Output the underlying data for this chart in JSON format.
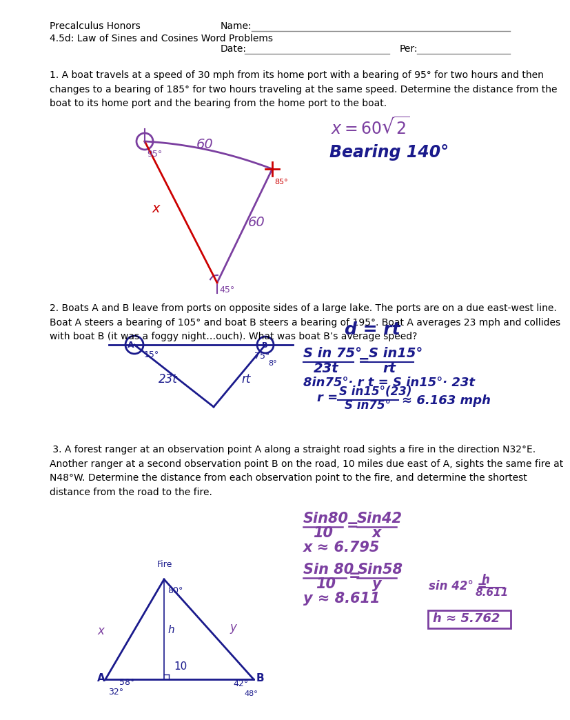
{
  "page_width": 7.91,
  "page_height": 10.24,
  "bg_color": "#ffffff",
  "header": {
    "line1_left": "Precalculus Honors",
    "line1_right": "Name:",
    "line2_left": "4.5d: Law of Sines and Cosines Word Problems",
    "line3_center": "Date:",
    "line3_per": "Per:",
    "font_size": 11
  },
  "problem1_text": "1. A boat travels at a speed of 30 mph from its home port with a bearing of 95° for two hours and then\nchanges to a bearing of 185° for two hours traveling at the same speed. Determine the distance from the\nboat to its home port and the bearing from the home port to the boat.",
  "problem2_text": "2. Boats A and B leave from ports on opposite sides of a large lake. The ports are on a due east-west line.\nBoat A steers a bearing of 105° and boat B steers a bearing of 195°. Boat A averages 23 mph and collides\nwith boat B (it was a foggy night…ouch). What was boat B’s average speed?",
  "problem3_text": " 3. A forest ranger at an observation point A along a straight road sights a fire in the direction N32°E.\nAnother ranger at a second observation point B on the road, 10 miles due east of A, sights the same fire at\nN48°W. Determine the distance from each observation point to the fire, and determine the shortest\ndistance from the road to the fire.",
  "purple": "#7B3FA0",
  "navy": "#1a1a8c",
  "red": "#cc0000",
  "gray": "#888888"
}
